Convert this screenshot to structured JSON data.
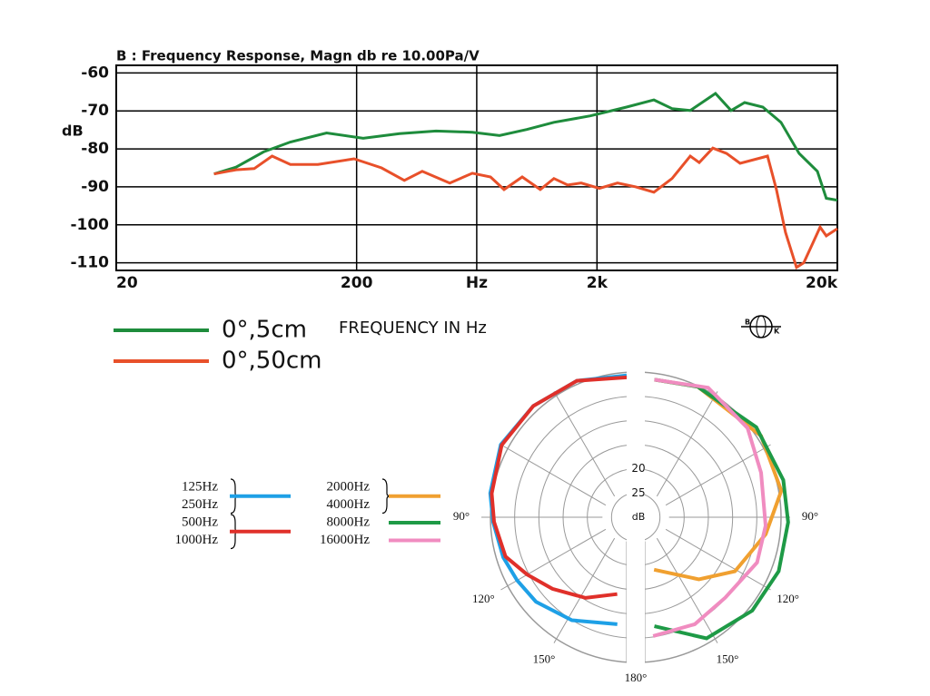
{
  "chart_data": [
    {
      "type": "line",
      "title": "B : Frequency Response, Magn db re 10.00Pa/V",
      "y_label": "dB",
      "x_label": "FREQUENCY IN Hz",
      "log_x": true,
      "grid": true,
      "xlim": [
        20,
        20000
      ],
      "xticks": [
        20,
        200,
        {
          "value": 632,
          "label": "Hz"
        },
        {
          "value": 2000,
          "label": "2k"
        },
        {
          "value": 20000,
          "label": "20k"
        }
      ],
      "ylim": [
        -112,
        -58
      ],
      "yticks": [
        -60,
        -70,
        -80,
        -90,
        -100,
        -110
      ],
      "logo_text": [
        "B",
        "K"
      ],
      "series": [
        {
          "name": "0°,5cm",
          "color": "#1e8c3c",
          "x": [
            51,
            63,
            82,
            106,
            150,
            213,
            302,
            428,
            606,
            786,
            1021,
            1324,
            1875,
            2655,
            3450,
            4105,
            4887,
            6224,
            7227,
            8230,
            9795,
            11650,
            13870,
            16520,
            17990,
            20000
          ],
          "values": [
            -86.6,
            -84.8,
            -80.8,
            -78.2,
            -75.8,
            -77.2,
            -76.0,
            -75.3,
            -75.6,
            -76.5,
            -74.9,
            -73.0,
            -71.3,
            -69.0,
            -67.1,
            -69.4,
            -69.9,
            -65.4,
            -69.9,
            -67.8,
            -69.0,
            -73.0,
            -81.2,
            -85.9,
            -93.0,
            -93.5
          ]
        },
        {
          "name": "0°,50cm",
          "color": "#e8502a",
          "x": [
            51,
            63,
            75,
            89,
            106,
            138,
            195,
            254,
            316,
            375,
            488,
            606,
            721,
            821,
            977,
            1162,
            1324,
            1510,
            1718,
            2047,
            2434,
            2898,
            3450,
            4105,
            4887,
            5324,
            6066,
            6920,
            7880,
            10240,
            11160,
            12170,
            13520,
            14490,
            15810,
            16950,
            17990,
            20000
          ],
          "values": [
            -86.6,
            -85.5,
            -85.2,
            -81.9,
            -84.1,
            -84.1,
            -82.6,
            -85.0,
            -88.3,
            -85.9,
            -89.0,
            -86.4,
            -87.4,
            -90.7,
            -87.4,
            -90.7,
            -87.8,
            -89.5,
            -89.0,
            -90.4,
            -89.0,
            -90.0,
            -91.4,
            -87.8,
            -81.9,
            -83.6,
            -79.8,
            -81.2,
            -83.8,
            -81.9,
            -90.7,
            -102.0,
            -111.2,
            -110.0,
            -104.8,
            -100.6,
            -102.9,
            -101.0
          ]
        }
      ]
    },
    {
      "type": "polar",
      "r_label": "dB",
      "rlim": [
        30,
        0
      ],
      "rticks": [
        20,
        25
      ],
      "rings": [
        0,
        5,
        10,
        15,
        20,
        25
      ],
      "thetaticks": [
        {
          "value": 90,
          "label": "90°"
        },
        {
          "value": 120,
          "label": "120°"
        },
        {
          "value": 150,
          "label": "150°"
        },
        {
          "value": 180,
          "label": "180°"
        }
      ],
      "series": [
        {
          "labels": [
            "125Hz",
            "250Hz"
          ],
          "color": "#1ea0e6",
          "side": "left",
          "theta": [
            0,
            20,
            40,
            60,
            80,
            92,
            108,
            120,
            133,
            152,
            175
          ],
          "values": [
            0.7,
            0,
            0,
            0,
            1.4,
            2.4,
            3.2,
            3.9,
            4.4,
            5.9,
            7.8
          ]
        },
        {
          "labels": [
            "500Hz",
            "1000Hz"
          ],
          "color": "#e0302a",
          "side": "left",
          "theta": [
            0,
            20,
            40,
            60,
            80,
            92,
            108,
            120,
            134,
            153,
            173
          ],
          "values": [
            1.1,
            0,
            0,
            0.2,
            1.7,
            2.6,
            3.7,
            6.3,
            8.7,
            11.3,
            14
          ]
        },
        {
          "labels": [
            "2000Hz",
            "4000Hz"
          ],
          "color": "#f0a030",
          "side": "right",
          "theta": [
            4,
            22,
            55,
            79,
            98,
            121,
            139,
            170
          ],
          "values": [
            1.5,
            0.9,
            0.7,
            1.3,
            4.8,
            8.3,
            13,
            19
          ]
        },
        {
          "labels": [
            "8000Hz"
          ],
          "color": "#1e9a46",
          "side": "right",
          "theta": [
            4,
            22,
            51,
            75,
            92,
            112,
            131,
            153,
            175
          ],
          "values": [
            1.5,
            0.9,
            0.4,
            0.4,
            0.4,
            0.2,
            0.6,
            1.9,
            7.4
          ]
        },
        {
          "labels": [
            "16000Hz"
          ],
          "color": "#f08cc0",
          "side": "right",
          "theta": [
            4,
            26,
            49,
            69,
            94,
            112,
            135,
            155,
            176
          ],
          "values": [
            1.5,
            0.2,
            1.9,
            4.3,
            5,
            5,
            6.5,
            5.6,
            5.4
          ]
        }
      ]
    }
  ]
}
